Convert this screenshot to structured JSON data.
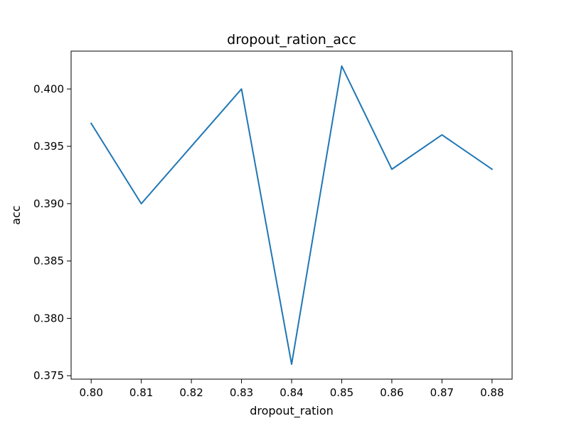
{
  "chart_data": {
    "type": "line",
    "title": "dropout_ration_acc",
    "xlabel": "dropout_ration",
    "ylabel": "acc",
    "x": [
      0.8,
      0.81,
      0.82,
      0.83,
      0.84,
      0.85,
      0.86,
      0.87,
      0.88
    ],
    "x_tick_labels": [
      "0.80",
      "0.81",
      "0.82",
      "0.83",
      "0.84",
      "0.85",
      "0.86",
      "0.87",
      "0.88"
    ],
    "y_ticks": [
      0.375,
      0.38,
      0.385,
      0.39,
      0.395,
      0.4
    ],
    "y_tick_labels": [
      "0.375",
      "0.380",
      "0.385",
      "0.390",
      "0.395",
      "0.400"
    ],
    "xlim": [
      0.796,
      0.884
    ],
    "ylim": [
      0.3747,
      0.4033
    ],
    "grid": false,
    "series": [
      {
        "color": "#1f77b4",
        "values": [
          0.397,
          0.39,
          0.395,
          0.4,
          0.376,
          0.402,
          0.393,
          0.396,
          0.393
        ]
      }
    ]
  }
}
